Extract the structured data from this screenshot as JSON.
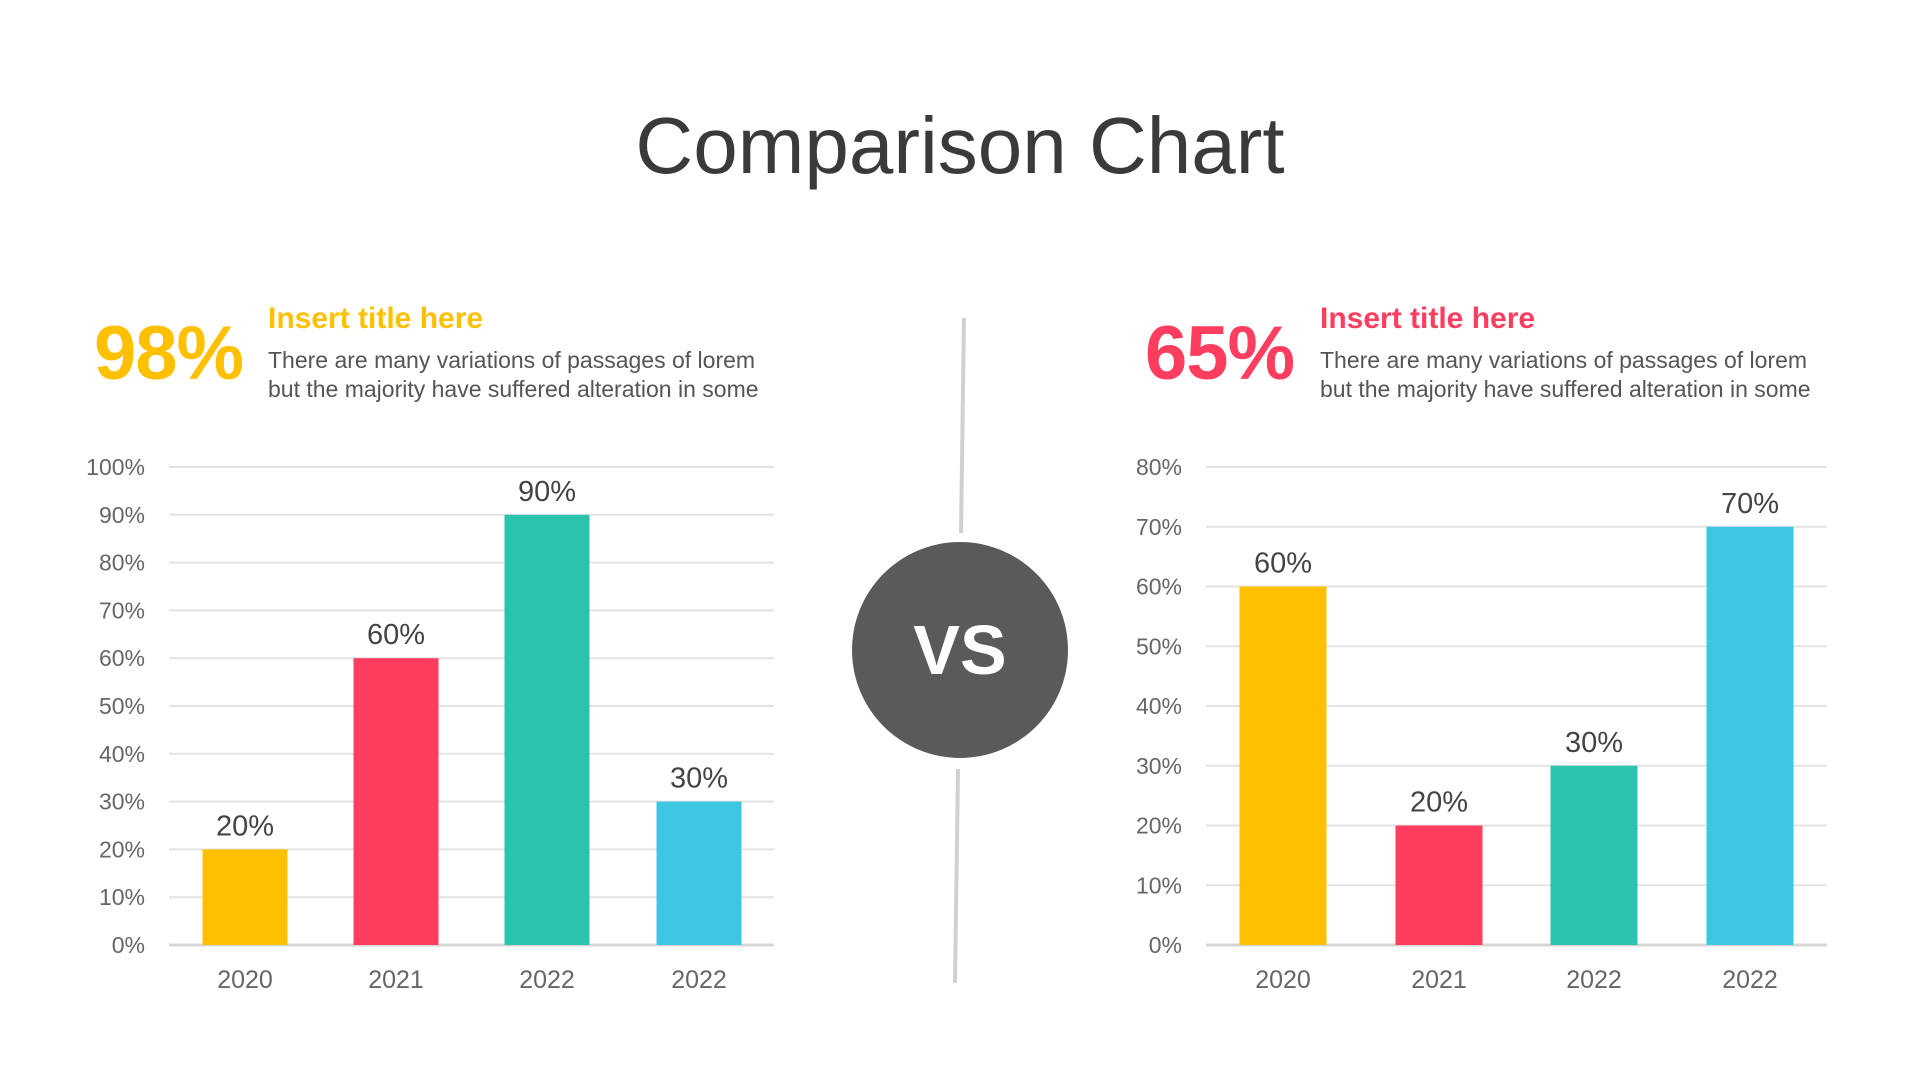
{
  "title": "Comparison Chart",
  "vs_label": "VS",
  "colors": {
    "yellow": "#FFC000",
    "red": "#FF3D5F",
    "teal": "#2BC3AD",
    "cyan": "#3CC6E2",
    "vs_circle": "#5A5A5A"
  },
  "panels": [
    {
      "stat": "98%",
      "heading": "Insert title here",
      "desc_lines": [
        "There are many variations of passages of lorem",
        "but the majority have suffered alteration in some"
      ],
      "accent": "#FFC000"
    },
    {
      "stat": "65%",
      "heading": "Insert title here",
      "desc_lines": [
        "There are many variations of passages of lorem",
        "but the majority have suffered alteration in some"
      ],
      "accent": "#FF3D5F"
    }
  ],
  "chart_data": [
    {
      "type": "bar",
      "categories": [
        "2020",
        "2021",
        "2022",
        "2022"
      ],
      "values": [
        20,
        60,
        90,
        30
      ],
      "data_labels": [
        "20%",
        "60%",
        "90%",
        "30%"
      ],
      "bar_colors": [
        "#FFC000",
        "#FF3D5F",
        "#2BC3AD",
        "#3CC6E2"
      ],
      "ylim": [
        0,
        100
      ],
      "yticks": [
        "0%",
        "10%",
        "20%",
        "30%",
        "40%",
        "50%",
        "60%",
        "70%",
        "80%",
        "90%",
        "100%"
      ],
      "grid": true
    },
    {
      "type": "bar",
      "categories": [
        "2020",
        "2021",
        "2022",
        "2022"
      ],
      "values": [
        60,
        20,
        30,
        70
      ],
      "data_labels": [
        "60%",
        "20%",
        "30%",
        "70%"
      ],
      "bar_colors": [
        "#FFC000",
        "#FF3D5F",
        "#2BC3AD",
        "#3CC6E2"
      ],
      "ylim": [
        0,
        80
      ],
      "yticks": [
        "0%",
        "10%",
        "20%",
        "30%",
        "40%",
        "50%",
        "60%",
        "70%",
        "80%"
      ],
      "grid": true
    }
  ]
}
